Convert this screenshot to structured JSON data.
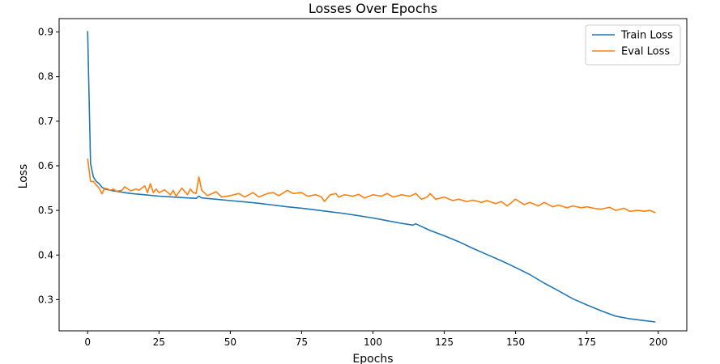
{
  "chart_data": {
    "type": "line",
    "title": "Losses Over Epochs",
    "xlabel": "Epochs",
    "ylabel": "Loss",
    "xlim": [
      -10,
      210
    ],
    "ylim": [
      0.23,
      0.93
    ],
    "x_ticks": [
      0,
      25,
      50,
      75,
      100,
      125,
      150,
      175,
      200
    ],
    "y_ticks": [
      0.3,
      0.4,
      0.5,
      0.6,
      0.7,
      0.8,
      0.9
    ],
    "x_tick_labels": [
      "0",
      "25",
      "50",
      "75",
      "100",
      "125",
      "150",
      "175",
      "200"
    ],
    "y_tick_labels": [
      "0.3",
      "0.4",
      "0.5",
      "0.6",
      "0.7",
      "0.8",
      "0.9"
    ],
    "grid": false,
    "legend_position": "top-right",
    "series": [
      {
        "name": "Train Loss",
        "color": "#1f77b4",
        "x": [
          0,
          1,
          2,
          3,
          4,
          5,
          6,
          8,
          10,
          12,
          15,
          20,
          25,
          30,
          35,
          38,
          39,
          40,
          45,
          50,
          55,
          60,
          65,
          70,
          75,
          80,
          85,
          90,
          95,
          100,
          105,
          110,
          114,
          115,
          120,
          125,
          130,
          135,
          140,
          145,
          150,
          155,
          160,
          165,
          170,
          175,
          180,
          185,
          190,
          195,
          199
        ],
        "y": [
          0.902,
          0.605,
          0.575,
          0.565,
          0.56,
          0.552,
          0.548,
          0.545,
          0.543,
          0.541,
          0.538,
          0.535,
          0.532,
          0.53,
          0.528,
          0.527,
          0.532,
          0.528,
          0.525,
          0.522,
          0.519,
          0.516,
          0.512,
          0.508,
          0.505,
          0.501,
          0.497,
          0.493,
          0.488,
          0.483,
          0.477,
          0.471,
          0.467,
          0.47,
          0.455,
          0.443,
          0.43,
          0.415,
          0.401,
          0.387,
          0.372,
          0.356,
          0.337,
          0.32,
          0.302,
          0.288,
          0.275,
          0.263,
          0.257,
          0.253,
          0.25
        ]
      },
      {
        "name": "Eval Loss",
        "color": "#ff7f0e",
        "x": [
          0,
          1,
          2,
          3,
          4,
          5,
          6,
          7,
          8,
          9,
          10,
          12,
          13,
          15,
          17,
          18,
          20,
          21,
          22,
          23,
          24,
          25,
          27,
          29,
          30,
          31,
          33,
          35,
          36,
          37,
          38,
          39,
          40,
          42,
          45,
          47,
          50,
          53,
          55,
          58,
          60,
          63,
          65,
          67,
          70,
          72,
          75,
          77,
          80,
          82,
          83,
          85,
          87,
          88,
          90,
          93,
          95,
          97,
          100,
          103,
          105,
          107,
          110,
          113,
          115,
          117,
          119,
          120,
          122,
          125,
          128,
          130,
          133,
          135,
          138,
          140,
          143,
          145,
          147,
          150,
          153,
          155,
          158,
          160,
          163,
          165,
          168,
          170,
          173,
          175,
          178,
          180,
          183,
          185,
          188,
          190,
          193,
          195,
          197,
          199
        ],
        "y": [
          0.616,
          0.565,
          0.565,
          0.557,
          0.55,
          0.537,
          0.55,
          0.548,
          0.545,
          0.548,
          0.543,
          0.545,
          0.553,
          0.544,
          0.548,
          0.545,
          0.555,
          0.54,
          0.56,
          0.54,
          0.548,
          0.54,
          0.546,
          0.535,
          0.545,
          0.532,
          0.55,
          0.535,
          0.548,
          0.54,
          0.538,
          0.575,
          0.545,
          0.533,
          0.542,
          0.53,
          0.533,
          0.538,
          0.53,
          0.54,
          0.53,
          0.538,
          0.54,
          0.533,
          0.545,
          0.538,
          0.54,
          0.532,
          0.535,
          0.53,
          0.52,
          0.535,
          0.538,
          0.53,
          0.535,
          0.532,
          0.536,
          0.528,
          0.535,
          0.532,
          0.538,
          0.53,
          0.535,
          0.532,
          0.538,
          0.525,
          0.53,
          0.538,
          0.525,
          0.53,
          0.522,
          0.525,
          0.52,
          0.523,
          0.518,
          0.522,
          0.515,
          0.52,
          0.51,
          0.525,
          0.513,
          0.518,
          0.51,
          0.518,
          0.508,
          0.512,
          0.506,
          0.51,
          0.506,
          0.508,
          0.504,
          0.503,
          0.507,
          0.5,
          0.505,
          0.498,
          0.5,
          0.498,
          0.5,
          0.495
        ]
      }
    ]
  }
}
